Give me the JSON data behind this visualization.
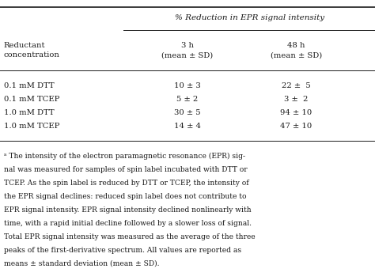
{
  "title_top": "% Reduction in EPR signal intensity",
  "col_header_left": "Reductant\nconcentration",
  "col_header_mid": "3 h\n(mean ± SD)",
  "col_header_right": "48 h\n(mean ± SD)",
  "rows": [
    {
      "label": "0.1 mM DTT",
      "val3h": "10 ± 3",
      "val48h": "22 ±  5"
    },
    {
      "label": "0.1 mM TCEP",
      "val3h": "5 ± 2",
      "val48h": "3 ±  2"
    },
    {
      "label": "1.0 mM DTT",
      "val3h": "30 ± 5",
      "val48h": "94 ± 10"
    },
    {
      "label": "1.0 mM TCEP",
      "val3h": "14 ± 4",
      "val48h": "47 ± 10"
    }
  ],
  "footnote_lines": [
    "ᵃ The intensity of the electron paramagnetic resonance (EPR) sig-",
    "nal was measured for samples of spin label incubated with DTT or",
    "TCEP. As the spin label is reduced by DTT or TCEP, the intensity of",
    "the EPR signal declines: reduced spin label does not contribute to",
    "EPR signal intensity. EPR signal intensity declined nonlinearly with",
    "time, with a rapid initial decline followed by a slower loss of signal.",
    "Total EPR signal intensity was measured as the average of the three",
    "peaks of the first-derivative spectrum. All values are reported as",
    "means ± standard deviation (mean ± SD)."
  ],
  "bg_color": "#ffffff",
  "text_color": "#1a1a1a",
  "font_size": 7.2,
  "footnote_font_size": 6.6,
  "title_font_size": 7.5
}
